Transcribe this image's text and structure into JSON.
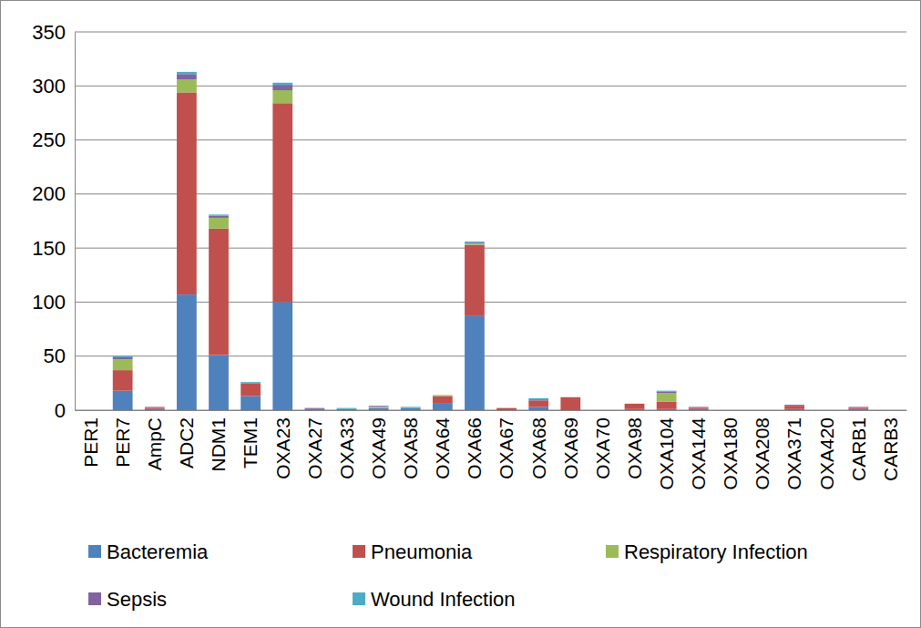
{
  "chart_data": {
    "type": "bar",
    "stacked": true,
    "grid": true,
    "legend": "bottom",
    "categories": [
      "PER1",
      "PER7",
      "AmpC",
      "ADC2",
      "NDM1",
      "TEM1",
      "OXA23",
      "OXA27",
      "OXA33",
      "OXA49",
      "OXA58",
      "OXA64",
      "OXA66",
      "OXA67",
      "OXA68",
      "OXA69",
      "OXA70",
      "OXA98",
      "OXA104",
      "OXA144",
      "OXA180",
      "OXA208",
      "OXA371",
      "OXA420",
      "CARB1",
      "CARB3"
    ],
    "series": [
      {
        "name": "Bacteremia",
        "color": "#4f81bd",
        "values": [
          0,
          18,
          1,
          107,
          51,
          13,
          100,
          1,
          1,
          2,
          2,
          6,
          87,
          0,
          3,
          0,
          0,
          1,
          1,
          1,
          0,
          0,
          1,
          0,
          1,
          0
        ]
      },
      {
        "name": "Pneumonia",
        "color": "#c0504d",
        "values": [
          0,
          19,
          1,
          187,
          117,
          12,
          184,
          0,
          0,
          0,
          0,
          7,
          66,
          2,
          6,
          12,
          0,
          5,
          7,
          1,
          0,
          0,
          3,
          0,
          1,
          0
        ]
      },
      {
        "name": "Respiratory Infection",
        "color": "#9bbb59",
        "values": [
          0,
          10,
          0,
          12,
          10,
          0,
          12,
          0,
          0,
          1,
          0,
          1,
          1,
          0,
          0,
          0,
          0,
          0,
          8,
          0,
          0,
          0,
          0,
          0,
          0,
          0
        ]
      },
      {
        "name": "Sepsis",
        "color": "#8064a2",
        "values": [
          0,
          2,
          1,
          5,
          2,
          0,
          5,
          1,
          0,
          1,
          0,
          0,
          1,
          0,
          1,
          0,
          0,
          0,
          1,
          1,
          0,
          0,
          1,
          0,
          1,
          0
        ]
      },
      {
        "name": "Wound Infection",
        "color": "#4bacc6",
        "values": [
          0,
          1,
          0,
          2,
          1,
          1,
          2,
          0,
          1,
          0,
          1,
          0,
          1,
          0,
          1,
          0,
          0,
          0,
          1,
          0,
          0,
          0,
          0,
          0,
          0,
          0
        ]
      }
    ],
    "ylim": [
      0,
      350
    ],
    "yticks": [
      0,
      50,
      100,
      150,
      200,
      250,
      300,
      350
    ]
  }
}
